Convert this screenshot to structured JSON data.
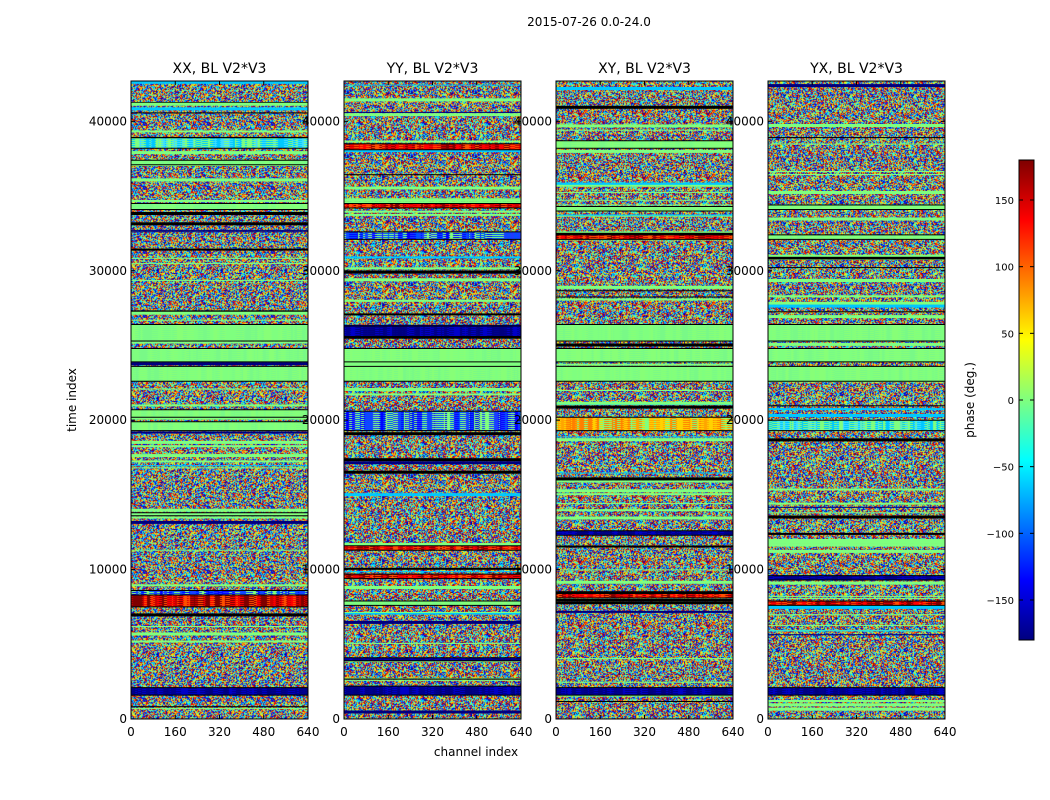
{
  "chart_data": {
    "type": "heatmap",
    "suptitle": "2015-07-26 0.0-24.0",
    "xlabel": "channel index",
    "ylabel": "time index",
    "xlim": [
      0,
      640
    ],
    "ylim": [
      0,
      42700
    ],
    "xticks": [
      0,
      160,
      320,
      480,
      640
    ],
    "yticks": [
      0,
      10000,
      20000,
      30000,
      40000
    ],
    "panels": [
      {
        "title": "XX, BL V2*V3",
        "bands": [
          {
            "y0": 1600,
            "y1": 2100,
            "kind": "navy"
          },
          {
            "y0": 7500,
            "y1": 8300,
            "kind": "red"
          },
          {
            "y0": 8300,
            "y1": 8600,
            "kind": "blue"
          },
          {
            "y0": 13600,
            "y1": 13800,
            "kind": "green"
          },
          {
            "y0": 19300,
            "y1": 19900,
            "kind": "green"
          },
          {
            "y0": 20200,
            "y1": 20700,
            "kind": "green"
          },
          {
            "y0": 22600,
            "y1": 23600,
            "kind": "green"
          },
          {
            "y0": 23900,
            "y1": 24800,
            "kind": "green"
          },
          {
            "y0": 25300,
            "y1": 26400,
            "kind": "green"
          },
          {
            "y0": 34100,
            "y1": 34500,
            "kind": "green"
          },
          {
            "y0": 37100,
            "y1": 37400,
            "kind": "green"
          },
          {
            "y0": 38200,
            "y1": 38900,
            "kind": "cyan"
          }
        ]
      },
      {
        "title": "YY, BL V2*V3",
        "bands": [
          {
            "y0": 1600,
            "y1": 2200,
            "kind": "navy"
          },
          {
            "y0": 3900,
            "y1": 4100,
            "kind": "navy"
          },
          {
            "y0": 7600,
            "y1": 7900,
            "kind": "green"
          },
          {
            "y0": 9400,
            "y1": 9700,
            "kind": "red"
          },
          {
            "y0": 11300,
            "y1": 11600,
            "kind": "red"
          },
          {
            "y0": 19300,
            "y1": 20600,
            "kind": "blue"
          },
          {
            "y0": 22600,
            "y1": 23600,
            "kind": "green"
          },
          {
            "y0": 23900,
            "y1": 24800,
            "kind": "green"
          },
          {
            "y0": 25600,
            "y1": 26300,
            "kind": "navy"
          },
          {
            "y0": 32100,
            "y1": 32600,
            "kind": "blue"
          },
          {
            "y0": 34200,
            "y1": 34500,
            "kind": "red"
          },
          {
            "y0": 38100,
            "y1": 38500,
            "kind": "red"
          }
        ]
      },
      {
        "title": "XY, BL V2*V3",
        "bands": [
          {
            "y0": 1600,
            "y1": 2100,
            "kind": "navy"
          },
          {
            "y0": 8100,
            "y1": 8400,
            "kind": "red"
          },
          {
            "y0": 12300,
            "y1": 12600,
            "kind": "navy"
          },
          {
            "y0": 19300,
            "y1": 20200,
            "kind": "orange"
          },
          {
            "y0": 22600,
            "y1": 23600,
            "kind": "green"
          },
          {
            "y0": 23900,
            "y1": 24800,
            "kind": "green"
          },
          {
            "y0": 25300,
            "y1": 26400,
            "kind": "green"
          },
          {
            "y0": 32100,
            "y1": 32400,
            "kind": "red"
          },
          {
            "y0": 34000,
            "y1": 34300,
            "kind": "green"
          },
          {
            "y0": 38200,
            "y1": 38700,
            "kind": "green"
          }
        ]
      },
      {
        "title": "YX, BL V2*V3",
        "bands": [
          {
            "y0": 1600,
            "y1": 2100,
            "kind": "navy"
          },
          {
            "y0": 7600,
            "y1": 7900,
            "kind": "red"
          },
          {
            "y0": 9300,
            "y1": 9600,
            "kind": "navy"
          },
          {
            "y0": 19300,
            "y1": 20000,
            "kind": "cyan"
          },
          {
            "y0": 22600,
            "y1": 23600,
            "kind": "green"
          },
          {
            "y0": 23900,
            "y1": 24800,
            "kind": "green"
          },
          {
            "y0": 25300,
            "y1": 26400,
            "kind": "green"
          },
          {
            "y0": 32100,
            "y1": 32400,
            "kind": "green"
          },
          {
            "y0": 34100,
            "y1": 34400,
            "kind": "green"
          }
        ]
      }
    ],
    "colorbar": {
      "label": "phase (deg.)",
      "range": [
        -180,
        180
      ],
      "ticks": [
        -150,
        -100,
        -50,
        0,
        50,
        100,
        150
      ],
      "tick_labels": [
        "−150",
        "−100",
        "−50",
        "0",
        "50",
        "100",
        "150"
      ],
      "colormap": "jet"
    },
    "grid": false,
    "legend": "none"
  }
}
